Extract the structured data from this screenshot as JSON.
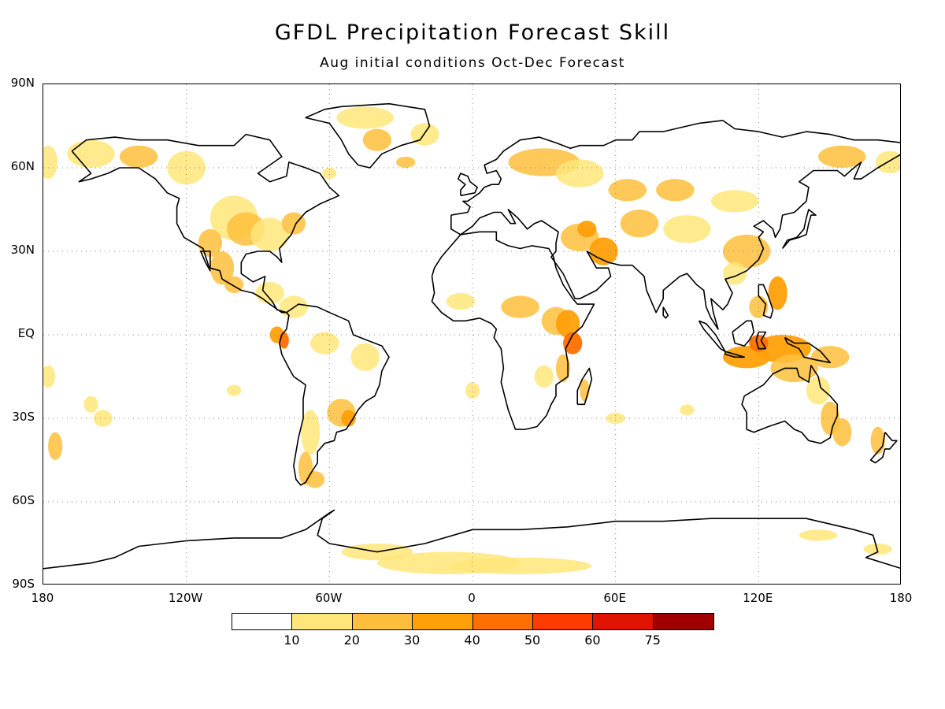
{
  "title": "GFDL Precipitation Forecast Skill",
  "subtitle": "Aug initial conditions  Oct-Dec Forecast",
  "lat_ticks": [
    "90N",
    "60N",
    "30N",
    "EQ",
    "30S",
    "60S",
    "90S"
  ],
  "lon_ticks": [
    "180",
    "120W",
    "60W",
    "0",
    "60E",
    "120E",
    "180"
  ],
  "colorbar": {
    "labels": [
      "10",
      "20",
      "30",
      "40",
      "50",
      "60",
      "75"
    ],
    "colors": [
      "#ffffff",
      "#ffe67a",
      "#ffbf3c",
      "#ffa00a",
      "#ff7000",
      "#ff3c00",
      "#e01400",
      "#a00000"
    ]
  },
  "skill_regions": [
    {
      "region": "Western Canada / Alaska",
      "level": 1
    },
    {
      "region": "Central & Eastern United States",
      "level": 2
    },
    {
      "region": "Mexico Pacific coast",
      "level": 2
    },
    {
      "region": "Ecuador coast",
      "level": 4
    },
    {
      "region": "Southern Brazil / Uruguay",
      "level": 3
    },
    {
      "region": "Patagonia",
      "level": 2
    },
    {
      "region": "Eastern Europe / Russia",
      "level": 2
    },
    {
      "region": "Middle East",
      "level": 3
    },
    {
      "region": "Central Asia",
      "level": 2
    },
    {
      "region": "Horn of Africa / East Africa",
      "level": 4
    },
    {
      "region": "Sahel",
      "level": 2
    },
    {
      "region": "Madagascar",
      "level": 2
    },
    {
      "region": "Philippines",
      "level": 3
    },
    {
      "region": "Indonesia",
      "level": 4
    },
    {
      "region": "Northern Australia",
      "level": 3
    },
    {
      "region": "Eastern Australia",
      "level": 2
    },
    {
      "region": "China",
      "level": 2
    },
    {
      "region": "Greenland coast",
      "level": 1
    },
    {
      "region": "Antarctica interior",
      "level": 1
    },
    {
      "region": "Eastern Siberia",
      "level": 2
    }
  ]
}
